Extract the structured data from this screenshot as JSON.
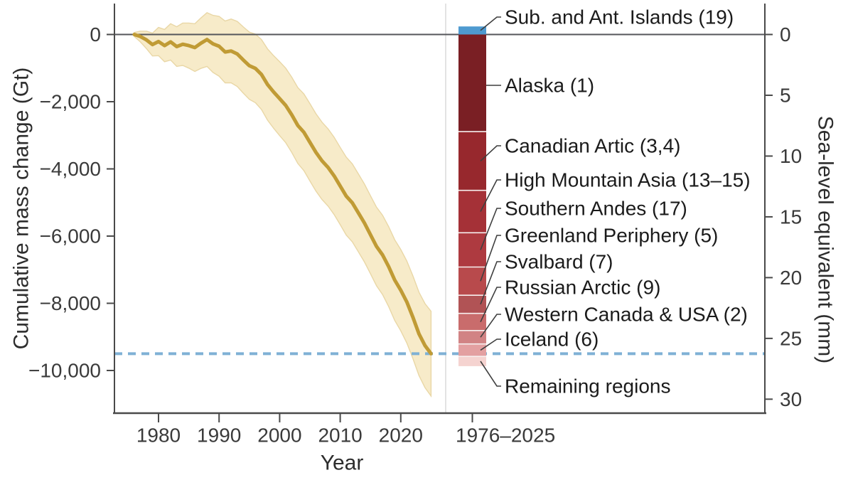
{
  "axes": {
    "left": {
      "title": "Cumulative mass change (Gt)",
      "tick_labels": [
        "0",
        "−2,000",
        "−4,000",
        "−6,000",
        "−8,000",
        "−10,000"
      ],
      "tick_values": [
        0,
        -2000,
        -4000,
        -6000,
        -8000,
        -10000
      ]
    },
    "right": {
      "title": "Sea-level equivalent (mm)",
      "tick_labels": [
        "0",
        "5",
        "10",
        "15",
        "20",
        "25",
        "30"
      ],
      "tick_values": [
        0,
        5,
        10,
        15,
        20,
        25,
        30
      ],
      "gt_per_mm": 361.8
    },
    "bottom": {
      "title": "Year",
      "tick_labels": [
        "1980",
        "1990",
        "2000",
        "2010",
        "2020"
      ],
      "tick_values": [
        1980,
        1990,
        2000,
        2010,
        2020
      ],
      "bar_panel_tick_label": "1976–2025"
    }
  },
  "colors": {
    "line": "#c09b35",
    "band_fill": "#f7ebc9",
    "band_edge": "#e9d7a6",
    "zero_line": "#55565a",
    "dashed_total_line": "#7fb1d5",
    "spine": "#4a4a4a",
    "panel_divider": "#d4d4d4",
    "leader_line": "#3f3f3f",
    "segment_separator": "#f7f0ef"
  },
  "chart_data": [
    {
      "type": "line",
      "name": "cumulative-glacier-mass-change",
      "xlabel": "Year",
      "ylabel": "Cumulative mass change (Gt)",
      "y2label": "Sea-level equivalent (mm)",
      "xlim": [
        1973,
        2026
      ],
      "ylim": [
        -11280,
        920
      ],
      "grid": false,
      "zero_reference_line": 0,
      "dashed_reference_line_gt": -9500,
      "x": [
        1976,
        1977,
        1978,
        1979,
        1980,
        1981,
        1982,
        1983,
        1984,
        1985,
        1986,
        1987,
        1988,
        1989,
        1990,
        1991,
        1992,
        1993,
        1994,
        1995,
        1996,
        1997,
        1998,
        1999,
        2000,
        2001,
        2002,
        2003,
        2004,
        2005,
        2006,
        2007,
        2008,
        2009,
        2010,
        2011,
        2012,
        2013,
        2014,
        2015,
        2016,
        2017,
        2018,
        2019,
        2020,
        2021,
        2022,
        2023,
        2024,
        2025
      ],
      "values": [
        0,
        -60,
        -160,
        -300,
        -210,
        -330,
        -220,
        -360,
        -290,
        -330,
        -390,
        -260,
        -150,
        -280,
        -350,
        -520,
        -490,
        -580,
        -760,
        -930,
        -1010,
        -1190,
        -1490,
        -1710,
        -1910,
        -2110,
        -2390,
        -2710,
        -2910,
        -3210,
        -3510,
        -3760,
        -3960,
        -4210,
        -4510,
        -4810,
        -5010,
        -5310,
        -5610,
        -5960,
        -6310,
        -6560,
        -6910,
        -7310,
        -7610,
        -7960,
        -8410,
        -8910,
        -9260,
        -9500
      ],
      "uncertainty_half_width": [
        60,
        160,
        260,
        340,
        420,
        480,
        540,
        590,
        630,
        670,
        710,
        750,
        800,
        850,
        890,
        920,
        950,
        970,
        985,
        1000,
        1020,
        1040,
        1060,
        1080,
        1100,
        1110,
        1120,
        1130,
        1140,
        1150,
        1150,
        1150,
        1150,
        1150,
        1150,
        1160,
        1160,
        1160,
        1160,
        1160,
        1170,
        1180,
        1190,
        1200,
        1210,
        1220,
        1230,
        1240,
        1250,
        1260
      ]
    },
    {
      "type": "bar",
      "name": "regional-contributions-1976-2025",
      "stacked": true,
      "category": "1976–2025",
      "segments": [
        {
          "label": "Sub. and Ant. Islands (19)",
          "value_gt": 240,
          "color": "#4e9ad0"
        },
        {
          "label": "Alaska (1)",
          "value_gt": -2890,
          "color": "#7a1f24"
        },
        {
          "label": "Canadian Artic (3,4)",
          "value_gt": -1750,
          "color": "#97282d"
        },
        {
          "label": "High Mountain Asia (13–15)",
          "value_gt": -1260,
          "color": "#a53137"
        },
        {
          "label": "Southern Andes (17)",
          "value_gt": -1020,
          "color": "#ae3a40"
        },
        {
          "label": "Greenland Periphery (5)",
          "value_gt": -840,
          "color": "#b84a4c"
        },
        {
          "label": "Svalbard (7)",
          "value_gt": -540,
          "color": "#b15355"
        },
        {
          "label": "Russian Arctic (9)",
          "value_gt": -510,
          "color": "#c96c6c"
        },
        {
          "label": "Western Canada & USA (2)",
          "value_gt": -400,
          "color": "#d18384"
        },
        {
          "label": "Iceland (6)",
          "value_gt": -370,
          "color": "#e3a0a1"
        },
        {
          "label": "Remaining regions",
          "value_gt": -290,
          "color": "#f5d3d0"
        }
      ]
    }
  ]
}
